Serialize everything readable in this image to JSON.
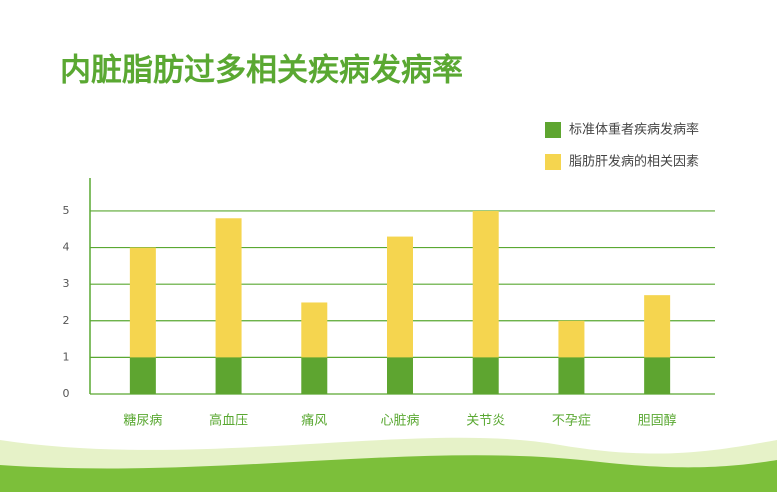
{
  "chart_data": {
    "type": "stacked_bar",
    "title": "内脏脂肪过多相关疾病发病率",
    "categories": [
      "糖尿病",
      "高血压",
      "痛风",
      "心脏病",
      "关节炎",
      "不孕症",
      "胆固醇"
    ],
    "series": [
      {
        "name": "标准体重者疾病发病率",
        "color": "#5ea530",
        "values": [
          1,
          1,
          1,
          1,
          1,
          1,
          1
        ]
      },
      {
        "name": "脂肪肝发病的相关因素",
        "color": "#f5d54f",
        "values": [
          3,
          3.8,
          1.5,
          3.3,
          4,
          1,
          1.7
        ]
      }
    ],
    "ylim": [
      0,
      5.9
    ],
    "yticks": [
      0,
      1,
      2,
      3,
      4,
      5
    ],
    "grid": true,
    "legend": "top-right"
  }
}
